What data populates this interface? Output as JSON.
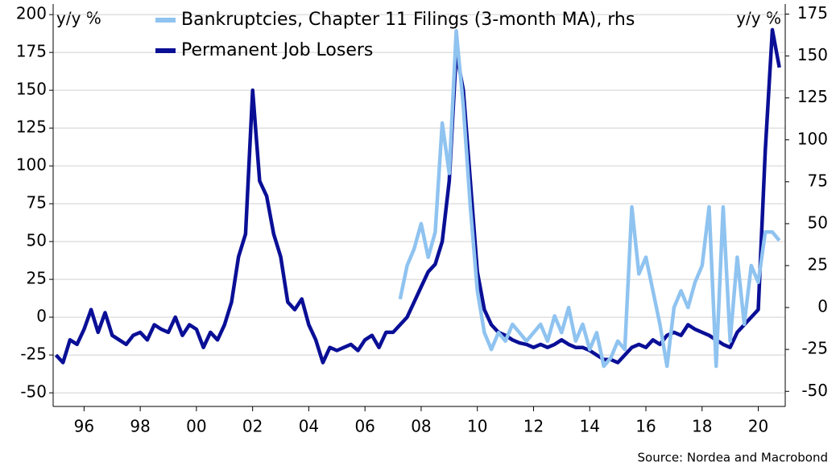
{
  "chart_data": {
    "type": "line",
    "y_label": "y/y %",
    "y2_label": "y/y %",
    "source": "Source: Nordea and Macrobond",
    "x": [
      1995.0,
      1995.25,
      1995.5,
      1995.75,
      1996.0,
      1996.25,
      1996.5,
      1996.75,
      1997.0,
      1997.25,
      1997.5,
      1997.75,
      1998.0,
      1998.25,
      1998.5,
      1998.75,
      1999.0,
      1999.25,
      1999.5,
      1999.75,
      2000.0,
      2000.25,
      2000.5,
      2000.75,
      2001.0,
      2001.25,
      2001.5,
      2001.75,
      2002.0,
      2002.25,
      2002.5,
      2002.75,
      2003.0,
      2003.25,
      2003.5,
      2003.75,
      2004.0,
      2004.25,
      2004.5,
      2004.75,
      2005.0,
      2005.25,
      2005.5,
      2005.75,
      2006.0,
      2006.25,
      2006.5,
      2006.75,
      2007.0,
      2007.25,
      2007.5,
      2007.75,
      2008.0,
      2008.25,
      2008.5,
      2008.75,
      2009.0,
      2009.25,
      2009.5,
      2009.75,
      2010.0,
      2010.25,
      2010.5,
      2010.75,
      2011.0,
      2011.25,
      2011.5,
      2011.75,
      2012.0,
      2012.25,
      2012.5,
      2012.75,
      2013.0,
      2013.25,
      2013.5,
      2013.75,
      2014.0,
      2014.25,
      2014.5,
      2014.75,
      2015.0,
      2015.25,
      2015.5,
      2015.75,
      2016.0,
      2016.25,
      2016.5,
      2016.75,
      2017.0,
      2017.25,
      2017.5,
      2017.75,
      2018.0,
      2018.25,
      2018.5,
      2018.75,
      2019.0,
      2019.25,
      2019.5,
      2019.75,
      2020.0,
      2020.25,
      2020.5,
      2020.75
    ],
    "series": [
      {
        "name": "Bankruptcies, Chapter 11 Filings (3-month MA), rhs",
        "color": "#8fc3f0",
        "axis": "y2",
        "values": [
          null,
          null,
          null,
          null,
          null,
          null,
          null,
          null,
          null,
          null,
          null,
          null,
          null,
          null,
          null,
          null,
          null,
          null,
          null,
          null,
          null,
          null,
          null,
          null,
          null,
          null,
          null,
          null,
          null,
          null,
          null,
          null,
          null,
          null,
          null,
          null,
          null,
          null,
          null,
          null,
          null,
          null,
          null,
          null,
          null,
          null,
          null,
          null,
          null,
          5,
          25,
          35,
          50,
          30,
          45,
          110,
          80,
          165,
          120,
          60,
          10,
          -15,
          -25,
          -15,
          -20,
          -10,
          -15,
          -20,
          -15,
          -10,
          -20,
          -5,
          -15,
          0,
          -20,
          -10,
          -25,
          -15,
          -35,
          -30,
          -20,
          -25,
          60,
          20,
          30,
          10,
          -10,
          -35,
          0,
          10,
          0,
          15,
          25,
          60,
          -35,
          60,
          -20,
          30,
          -10,
          25,
          15,
          45,
          45,
          40
        ]
      },
      {
        "name": "Permanent Job Losers",
        "color": "#0a0f96",
        "values": [
          -25,
          -30,
          -15,
          -18,
          -8,
          5,
          -10,
          3,
          -12,
          -15,
          -18,
          -12,
          -10,
          -15,
          -5,
          -8,
          -10,
          0,
          -12,
          -5,
          -8,
          -20,
          -10,
          -15,
          -5,
          10,
          40,
          55,
          150,
          90,
          80,
          55,
          40,
          10,
          5,
          12,
          -5,
          -15,
          -30,
          -20,
          -22,
          -20,
          -18,
          -22,
          -15,
          -12,
          -20,
          -10,
          -10,
          -5,
          0,
          10,
          20,
          30,
          35,
          50,
          90,
          175,
          150,
          90,
          30,
          5,
          -5,
          -10,
          -12,
          -15,
          -17,
          -18,
          -20,
          -18,
          -20,
          -18,
          -15,
          -18,
          -20,
          -20,
          -22,
          -25,
          -28,
          -28,
          -30,
          -25,
          -20,
          -18,
          -20,
          -15,
          -18,
          -12,
          -10,
          -12,
          -5,
          -8,
          -10,
          -12,
          -15,
          -18,
          -20,
          -10,
          -5,
          0,
          5,
          110,
          190,
          165
        ]
      }
    ],
    "xlim": [
      1994.9,
      2020.96
    ],
    "xticks": [
      {
        "value": 1996,
        "label": "96"
      },
      {
        "value": 1998,
        "label": "98"
      },
      {
        "value": 2000,
        "label": "00"
      },
      {
        "value": 2002,
        "label": "02"
      },
      {
        "value": 2004,
        "label": "04"
      },
      {
        "value": 2006,
        "label": "06"
      },
      {
        "value": 2008,
        "label": "08"
      },
      {
        "value": 2010,
        "label": "10"
      },
      {
        "value": 2012,
        "label": "12"
      },
      {
        "value": 2014,
        "label": "14"
      },
      {
        "value": 2016,
        "label": "16"
      },
      {
        "value": 2018,
        "label": "18"
      },
      {
        "value": 2020,
        "label": "20"
      }
    ],
    "ylim": [
      -59,
      207
    ],
    "yticks": [
      -50,
      -25,
      0,
      25,
      50,
      75,
      100,
      125,
      150,
      175,
      200
    ],
    "y2lim": [
      -59,
      181
    ],
    "y2ticks": [
      -50,
      -25,
      0,
      25,
      50,
      75,
      100,
      125,
      150,
      175
    ],
    "grid": true
  }
}
